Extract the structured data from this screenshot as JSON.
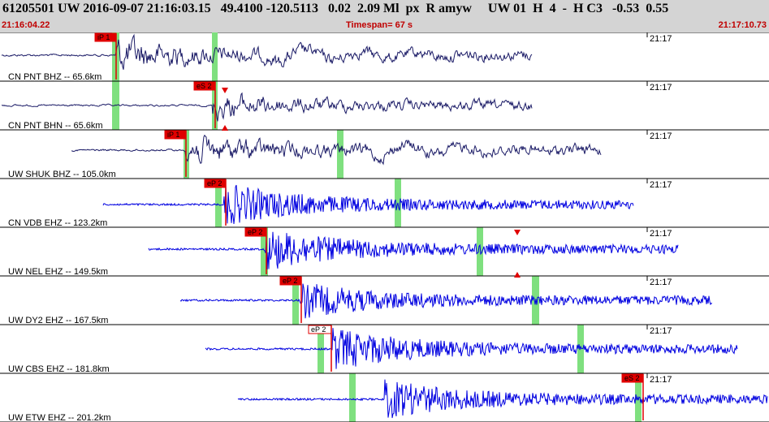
{
  "header": {
    "title": "61205501 UW 2016-09-07 21:16:03.15   49.4100 -120.5113   0.02  2.09 Ml  px  R amyw     UW 01  H  4  -  H C3   -0.53  0.55",
    "start_time": "21:16:04.22",
    "timespan": "Timespan=  67 s",
    "end_time": "21:17:10.73"
  },
  "colors": {
    "dark_trace": "#1a1a66",
    "blue_trace": "#0000e0",
    "pick": "#e00000",
    "window": "#7fe07f"
  },
  "traces": [
    {
      "label": "CN PNT BHZ -- 65.6km",
      "time": "21:17",
      "color": "#1a1a66",
      "picks": [
        {
          "text": "iP 1",
          "style": "filled"
        }
      ]
    },
    {
      "label": "CN PNT BHN -- 65.6km",
      "time": "21:17",
      "color": "#1a1a66",
      "picks": [
        {
          "text": "eS 2",
          "style": "filled"
        }
      ]
    },
    {
      "label": "UW SHUK BHZ -- 105.0km",
      "time": "21:17",
      "color": "#1a1a66",
      "picks": [
        {
          "text": "iP 1",
          "style": "filled"
        }
      ]
    },
    {
      "label": "CN VDB EHZ -- 123.2km",
      "time": "21:17",
      "color": "#0000e0",
      "picks": [
        {
          "text": "eP 2",
          "style": "filled"
        }
      ]
    },
    {
      "label": "UW NEL EHZ -- 149.5km",
      "time": "21:17",
      "color": "#0000e0",
      "picks": [
        {
          "text": "eP 2",
          "style": "filled"
        }
      ]
    },
    {
      "label": "UW DY2 EHZ -- 167.5km",
      "time": "21:17",
      "color": "#0000e0",
      "picks": [
        {
          "text": "eP 2",
          "style": "filled"
        }
      ]
    },
    {
      "label": "UW CBS EHZ -- 181.8km",
      "time": "21:17",
      "color": "#0000e0",
      "picks": [
        {
          "text": "eP 2",
          "style": "outline"
        }
      ]
    },
    {
      "label": "UW ETW EHZ -- 201.2km",
      "time": "21:17",
      "color": "#0000e0",
      "picks": [
        {
          "text": "eS 2",
          "style": "filled"
        }
      ]
    }
  ]
}
